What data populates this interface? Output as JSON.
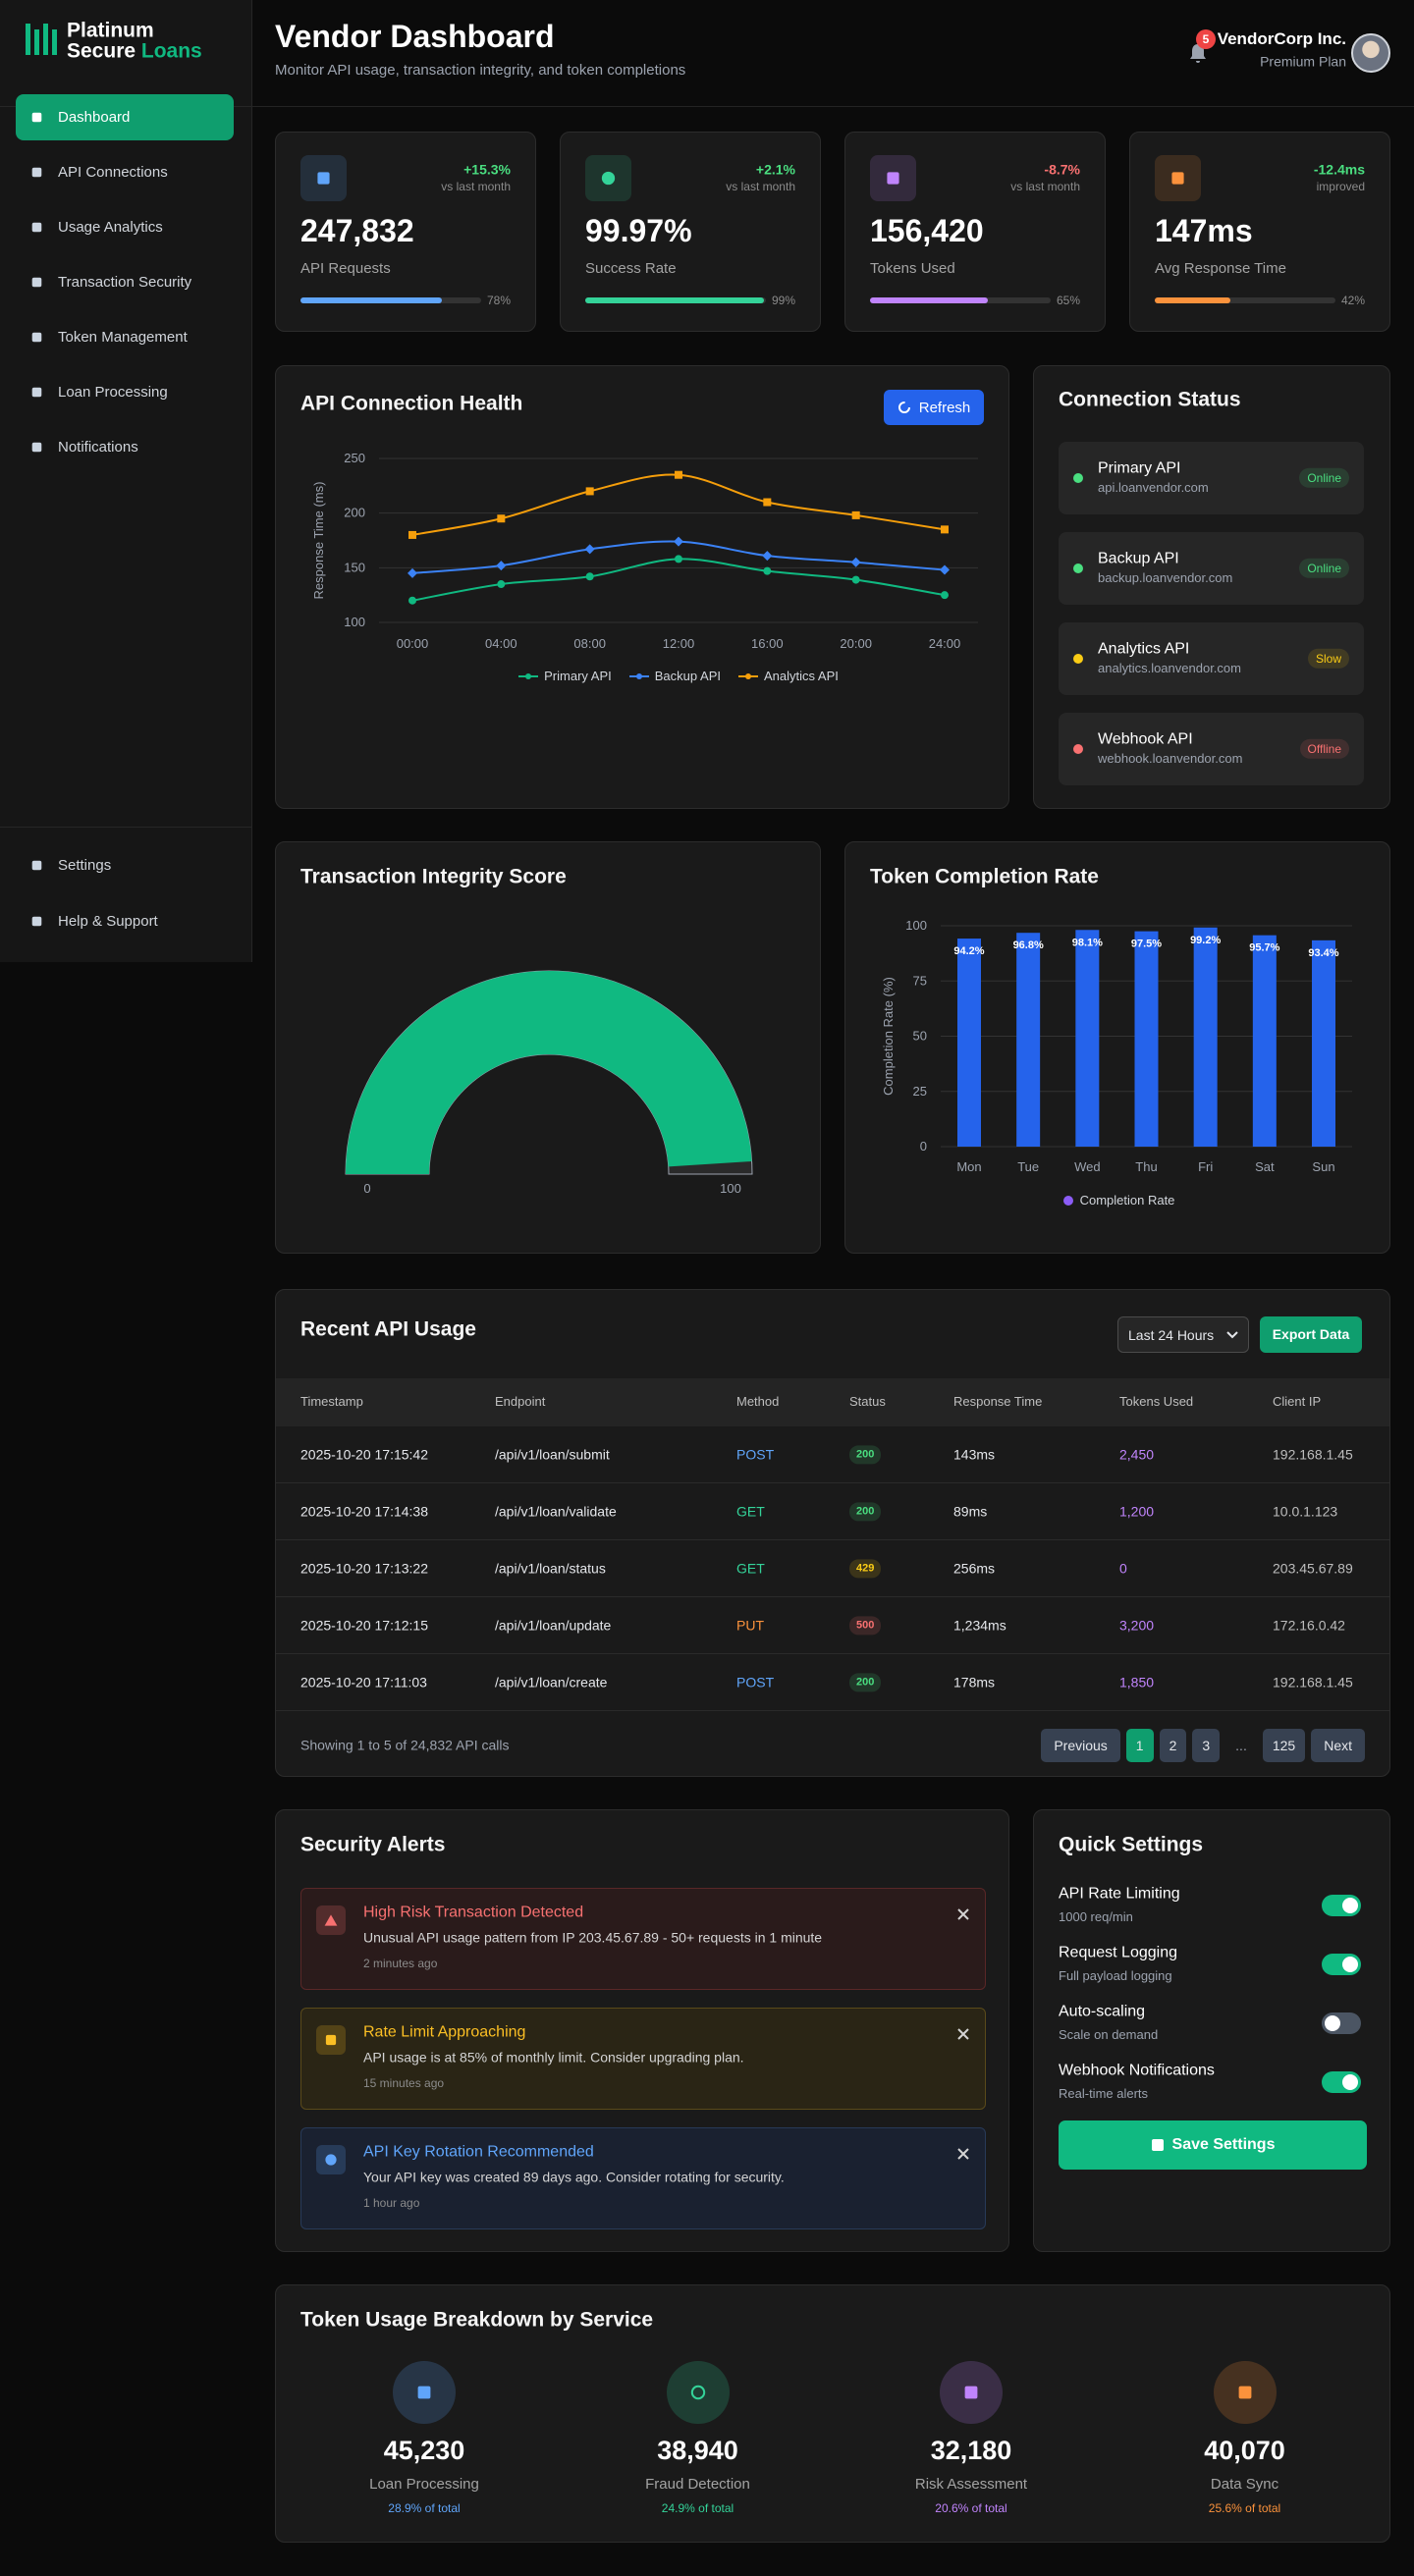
{
  "sidebar": {
    "brand_line1": "Platinum",
    "brand_line2a": "Secure",
    "brand_line2b": "Loans",
    "nav": [
      "Dashboard",
      "API Connections",
      "Usage Analytics",
      "Transaction Security",
      "Token Management",
      "Loan Processing",
      "Notifications"
    ],
    "footer_nav": [
      "Settings",
      "Help & Support"
    ]
  },
  "header": {
    "title": "Vendor Dashboard",
    "subtitle": "Monitor API usage, transaction integrity, and token completions",
    "notification_count": 5,
    "user_name": "VendorCorp Inc.",
    "user_plan": "Premium Plan"
  },
  "stats": [
    {
      "value": "247,832",
      "label": "API Requests",
      "change": "+15.3%",
      "change_note": "vs last month",
      "progress": 78,
      "progress_label": "78%",
      "color": "#60a5fa",
      "change_color": "#4ade80"
    },
    {
      "value": "99.97%",
      "label": "Success Rate",
      "change": "+2.1%",
      "change_note": "vs last month",
      "progress": 99,
      "progress_label": "99%",
      "color": "#34d399",
      "change_color": "#4ade80"
    },
    {
      "value": "156,420",
      "label": "Tokens Used",
      "change": "-8.7%",
      "change_note": "vs last month",
      "progress": 65,
      "progress_label": "65%",
      "color": "#c084fc",
      "change_color": "#f87171"
    },
    {
      "value": "147ms",
      "label": "Avg Response Time",
      "change": "-12.4ms",
      "change_note": "improved",
      "progress": 42,
      "progress_label": "42%",
      "color": "#fb923c",
      "change_color": "#4ade80"
    }
  ],
  "api_health_card": {
    "refresh": "Refresh"
  },
  "connection_status": {
    "title": "Connection Status",
    "items": [
      {
        "name": "Primary API",
        "host": "api.loanvendor.com",
        "status": "Online",
        "color": "#4ade80"
      },
      {
        "name": "Backup API",
        "host": "backup.loanvendor.com",
        "status": "Online",
        "color": "#4ade80"
      },
      {
        "name": "Analytics API",
        "host": "analytics.loanvendor.com",
        "status": "Slow",
        "color": "#facc15"
      },
      {
        "name": "Webhook API",
        "host": "webhook.loanvendor.com",
        "status": "Offline",
        "color": "#f87171"
      }
    ]
  },
  "chart_data": [
    {
      "type": "line",
      "title": "API Connection Health",
      "categories": [
        "00:00",
        "04:00",
        "08:00",
        "12:00",
        "16:00",
        "20:00",
        "24:00"
      ],
      "series": [
        {
          "name": "Primary API",
          "color": "#10b981",
          "values": [
            120,
            135,
            142,
            158,
            147,
            139,
            125
          ]
        },
        {
          "name": "Backup API",
          "color": "#3b82f6",
          "values": [
            145,
            152,
            167,
            174,
            161,
            155,
            148
          ]
        },
        {
          "name": "Analytics API",
          "color": "#f59e0b",
          "values": [
            180,
            195,
            220,
            235,
            210,
            198,
            185
          ]
        }
      ],
      "ylim": [
        100,
        250
      ],
      "yticks": [
        100,
        150,
        200,
        250
      ],
      "ylabel": "Response Time (ms)",
      "grid": true,
      "legend": "bottom"
    },
    {
      "type": "gauge",
      "title": "Transaction Integrity Score",
      "value": 98,
      "ylim": [
        0,
        100
      ],
      "yticks": [
        0,
        100
      ],
      "color": "#10b981"
    },
    {
      "type": "bar",
      "title": "Token Completion Rate",
      "categories": [
        "Mon",
        "Tue",
        "Wed",
        "Thu",
        "Fri",
        "Sat",
        "Sun"
      ],
      "series": [
        {
          "name": "Completion Rate",
          "color": "#2563eb",
          "values": [
            94.2,
            96.8,
            98.1,
            97.5,
            99.2,
            95.7,
            93.4
          ],
          "value_labels": [
            "94.2%",
            "96.8%",
            "98.1%",
            "97.5%",
            "99.2%",
            "95.7%",
            "93.4%"
          ]
        }
      ],
      "legend_marker_color": "#8b5cf6",
      "ylim": [
        0,
        100
      ],
      "yticks": [
        0,
        25,
        50,
        75,
        100
      ],
      "ylabel": "Completion Rate (%)",
      "grid": true,
      "legend": "bottom"
    }
  ],
  "recent_api_usage": {
    "title": "Recent API Usage",
    "range": "Last 24 Hours",
    "export": "Export Data",
    "columns": [
      "Timestamp",
      "Endpoint",
      "Method",
      "Status",
      "Response Time",
      "Tokens Used",
      "Client IP"
    ],
    "rows": [
      [
        "2025-10-20 17:15:42",
        "/api/v1/loan/submit",
        "POST",
        "200",
        "143ms",
        "2,450",
        "192.168.1.45"
      ],
      [
        "2025-10-20 17:14:38",
        "/api/v1/loan/validate",
        "GET",
        "200",
        "89ms",
        "1,200",
        "10.0.1.123"
      ],
      [
        "2025-10-20 17:13:22",
        "/api/v1/loan/status",
        "GET",
        "429",
        "256ms",
        "0",
        "203.45.67.89"
      ],
      [
        "2025-10-20 17:12:15",
        "/api/v1/loan/update",
        "PUT",
        "500",
        "1,234ms",
        "3,200",
        "172.16.0.42"
      ],
      [
        "2025-10-20 17:11:03",
        "/api/v1/loan/create",
        "POST",
        "200",
        "178ms",
        "1,850",
        "192.168.1.45"
      ]
    ],
    "method_colors": {
      "POST": "#60a5fa",
      "GET": "#34d399",
      "PUT": "#fb923c"
    },
    "status_colors": {
      "200": "#4ade80",
      "429": "#facc15",
      "500": "#f87171"
    },
    "footer": "Showing 1 to 5 of 24,832 API calls",
    "pagination": [
      "Previous",
      "1",
      "2",
      "3",
      "...",
      "125",
      "Next"
    ],
    "active_page": 1
  },
  "security_alerts": {
    "title": "Security Alerts",
    "alerts": [
      {
        "title": "High Risk Transaction Detected",
        "message": "Unusual API usage pattern from IP 203.45.67.89 - 50+ requests in 1 minute",
        "time": "2 minutes ago",
        "color": "#f87171",
        "bg": "#2a1b1b",
        "border": "#5a2727"
      },
      {
        "title": "Rate Limit Approaching",
        "message": "API usage is at 85% of monthly limit. Consider upgrading plan.",
        "time": "15 minutes ago",
        "color": "#fbbf24",
        "bg": "#2a2515",
        "border": "#5a4a1a"
      },
      {
        "title": "API Key Rotation Recommended",
        "message": "Your API key was created 89 days ago. Consider rotating for security.",
        "time": "1 hour ago",
        "color": "#60a5fa",
        "bg": "#1a2130",
        "border": "#283a58"
      }
    ]
  },
  "quick_settings": {
    "title": "Quick Settings",
    "items": [
      {
        "label": "API Rate Limiting",
        "desc": "1000 req/min",
        "enabled": true
      },
      {
        "label": "Request Logging",
        "desc": "Full payload logging",
        "enabled": true
      },
      {
        "label": "Auto-scaling",
        "desc": "Scale on demand",
        "enabled": false
      },
      {
        "label": "Webhook Notifications",
        "desc": "Real-time alerts",
        "enabled": true
      }
    ],
    "save": "Save Settings"
  },
  "token_breakdown": {
    "title": "Token Usage Breakdown by Service",
    "services": [
      {
        "value": "45,230",
        "name": "Loan Processing",
        "share": "28.9% of total",
        "color": "#60a5fa"
      },
      {
        "value": "38,940",
        "name": "Fraud Detection",
        "share": "24.9% of total",
        "color": "#34d399"
      },
      {
        "value": "32,180",
        "name": "Risk Assessment",
        "share": "20.6% of total",
        "color": "#c084fc"
      },
      {
        "value": "40,070",
        "name": "Data Sync",
        "share": "25.6% of total",
        "color": "#fb923c"
      }
    ]
  }
}
